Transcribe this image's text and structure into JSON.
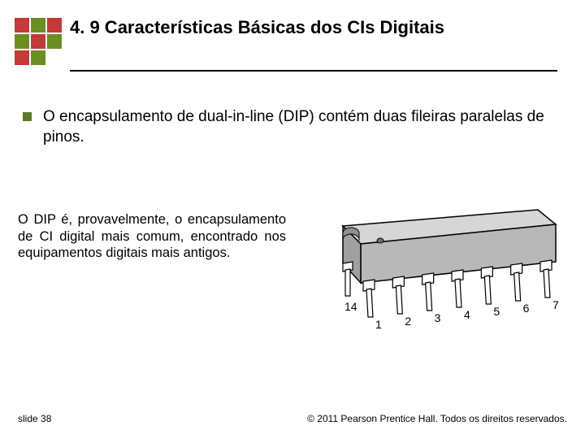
{
  "logo": {
    "colors": [
      "#c23a3a",
      "#6b8e23",
      "#c23a3a",
      "#6b8e23",
      "#c23a3a",
      "#6b8e23",
      "#c23a3a",
      "#6b8e23",
      "transparent"
    ]
  },
  "title": "4. 9 Características Básicas dos CIs Digitais",
  "underline_color": "#000000",
  "bullet": {
    "marker_color": "#5a7a2a",
    "text": "O encapsulamento de dual-in-line (DIP) contém duas fileiras paralelas de pinos."
  },
  "paragraph": "O DIP é, provavelmente, o encapsulamento de CI digital mais comum, encontrado nos equipamentos digitais mais antigos.",
  "chip": {
    "body_fill": "#b8b8b8",
    "body_stroke": "#000000",
    "top_fill": "#d6d6d6",
    "side_fill": "#a0a0a0",
    "pin_fill": "#ffffff",
    "pin_stroke": "#000000",
    "notch_fill": "#909090",
    "dot_fill": "#707070",
    "label_font": "14",
    "labels_front": [
      "1",
      "2",
      "3",
      "4",
      "5",
      "6",
      "7"
    ],
    "label_back": "14"
  },
  "footer": {
    "left": "slide 38",
    "right": "© 2011 Pearson Prentice Hall. Todos os direitos reservados."
  }
}
